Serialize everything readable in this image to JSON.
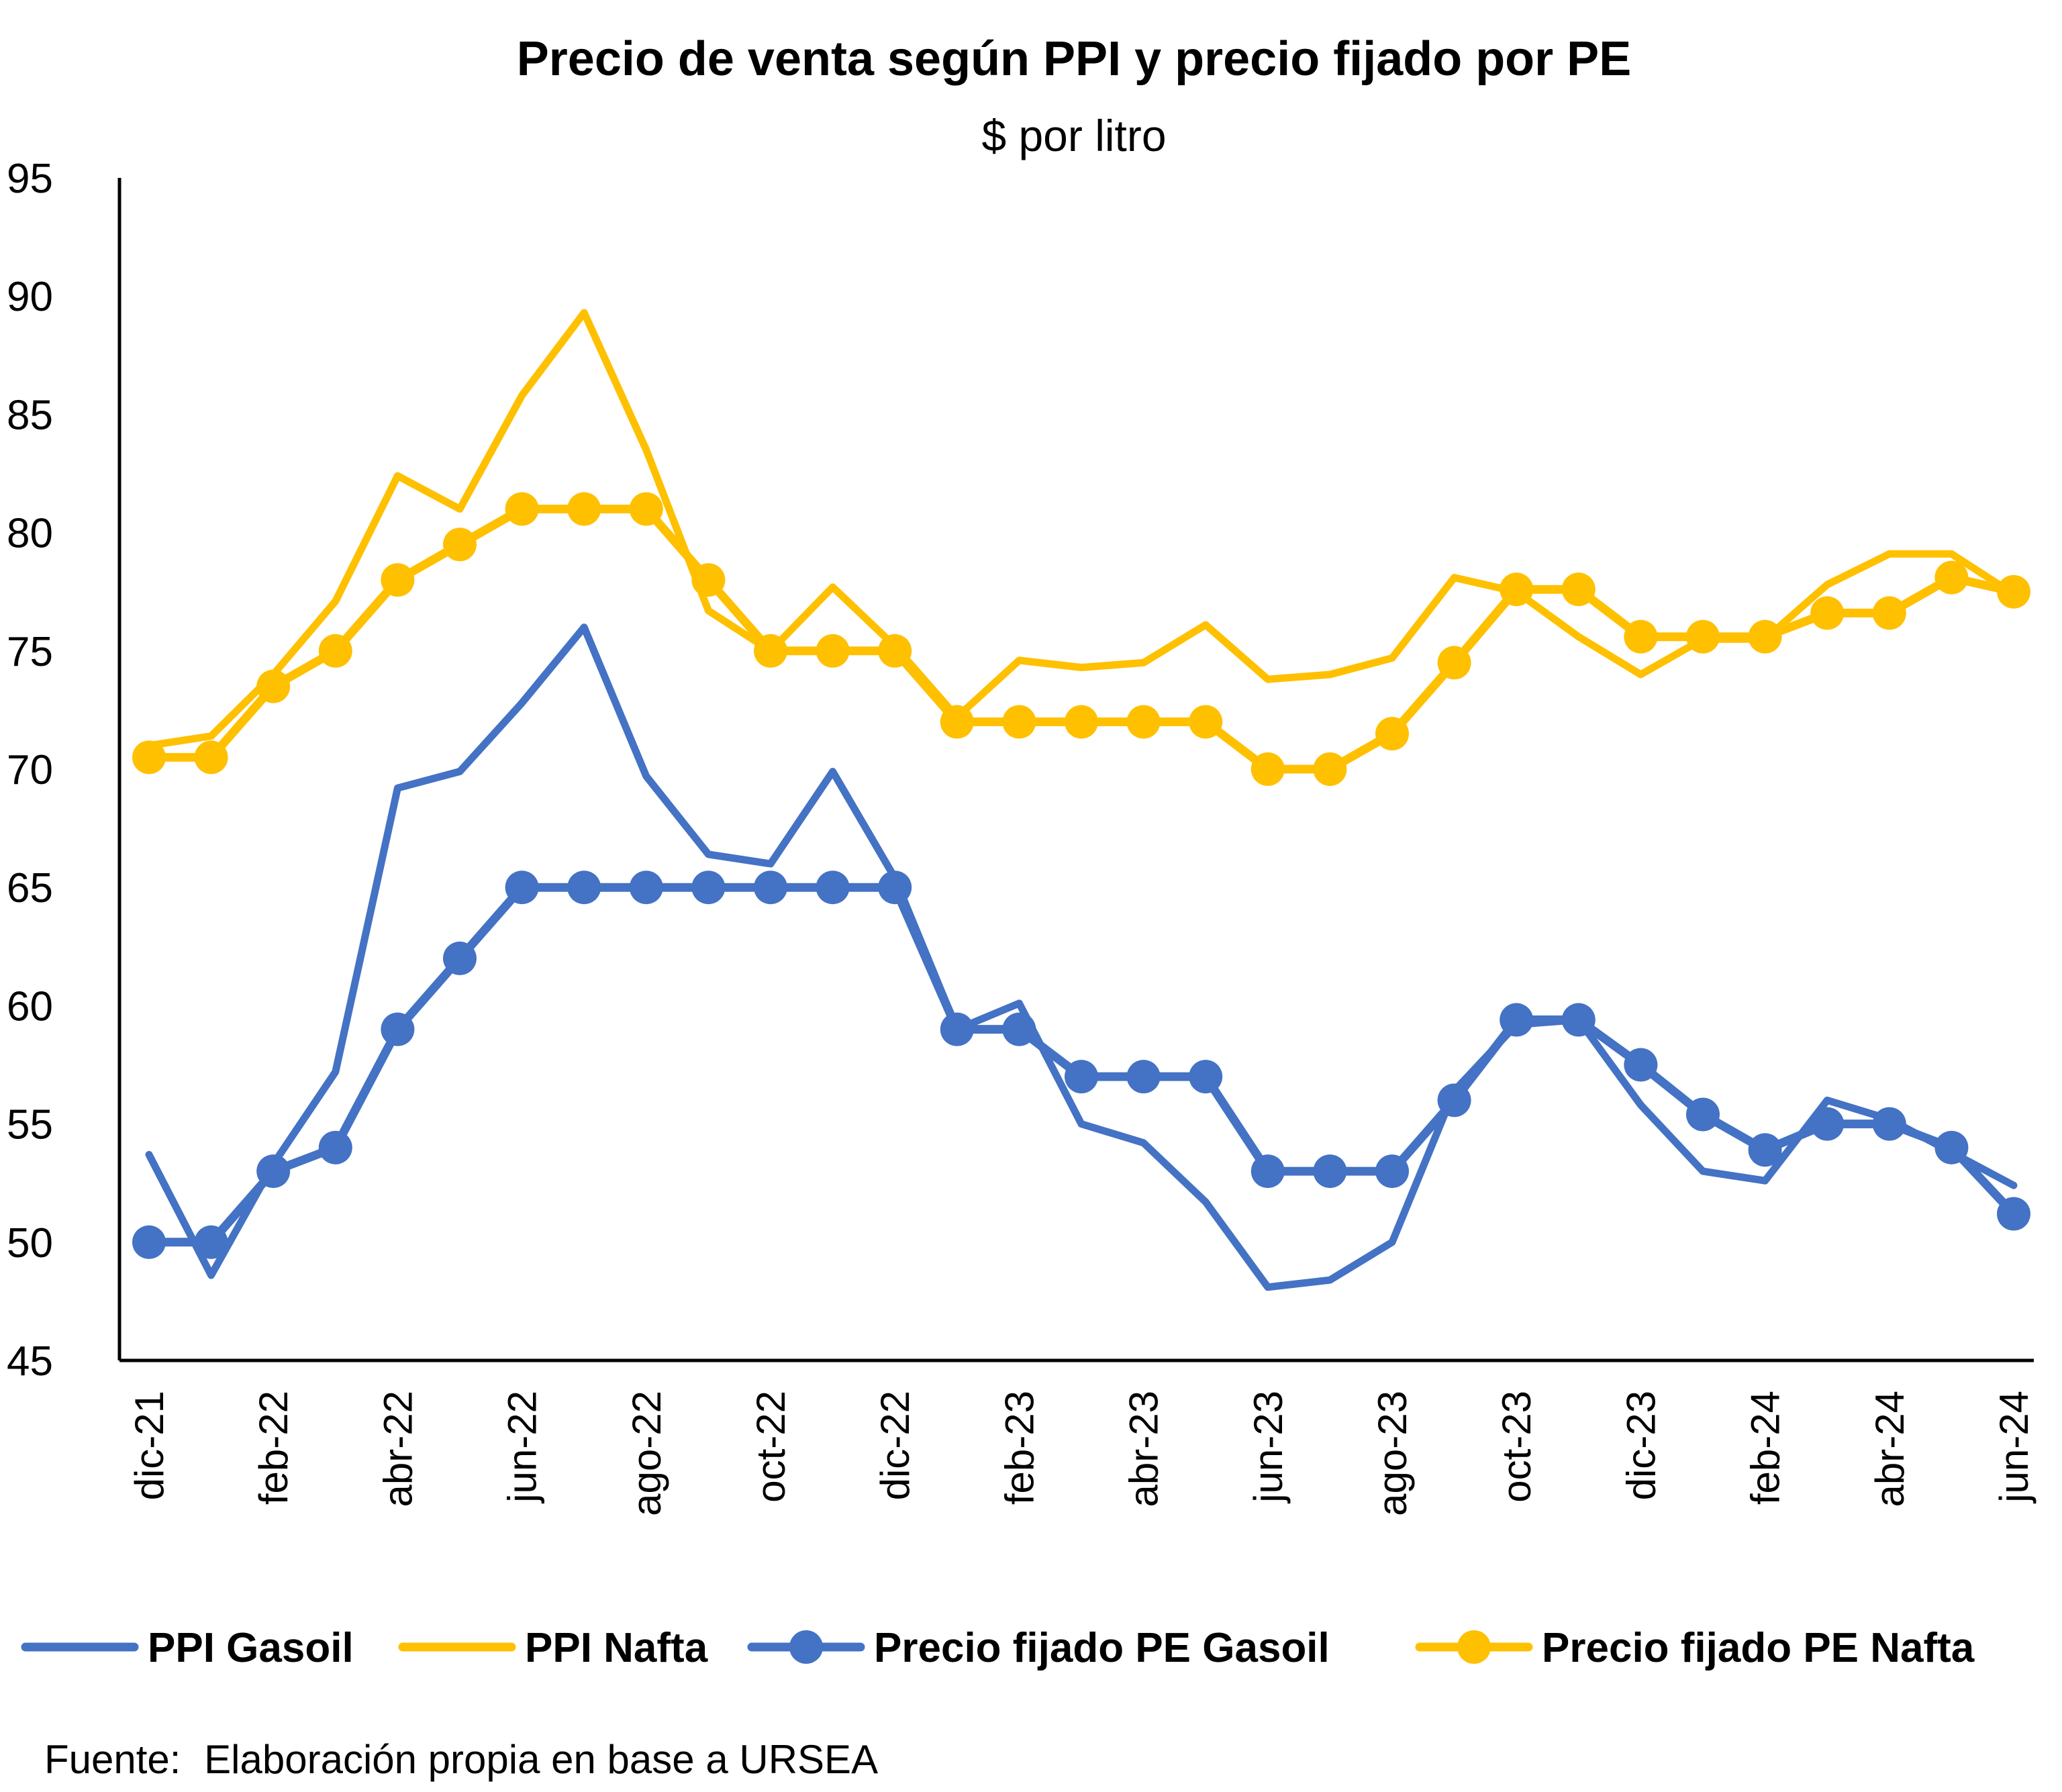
{
  "chart_data": {
    "type": "line",
    "title": "Precio de venta según PPI y precio fijado por PE",
    "subtitle": "$ por litro",
    "ylim": [
      45,
      95
    ],
    "yticks": [
      45,
      50,
      55,
      60,
      65,
      70,
      75,
      80,
      85,
      90,
      95
    ],
    "x": [
      "dic-21",
      "ene-22",
      "feb-22",
      "mar-22",
      "abr-22",
      "may-22",
      "jun-22",
      "jul-22",
      "ago-22",
      "sep-22",
      "oct-22",
      "nov-22",
      "dic-22",
      "ene-23",
      "feb-23",
      "mar-23",
      "abr-23",
      "may-23",
      "jun-23",
      "jul-23",
      "ago-23",
      "sep-23",
      "oct-23",
      "nov-23",
      "dic-23",
      "ene-24",
      "feb-24",
      "mar-24",
      "abr-24",
      "may-24",
      "jun-24"
    ],
    "xtick_labels": [
      "dic-21",
      "feb-22",
      "abr-22",
      "jun-22",
      "ago-22",
      "oct-22",
      "dic-22",
      "feb-23",
      "abr-23",
      "jun-23",
      "ago-23",
      "oct-23",
      "dic-23",
      "feb-24",
      "abr-24",
      "jun-24"
    ],
    "grid": false,
    "legend_position": "bottom",
    "series": [
      {
        "name": "PPI Gasoil",
        "color": "#4472C4",
        "markers": false,
        "values": [
          53.7,
          48.6,
          53.3,
          57.2,
          69.2,
          69.9,
          72.8,
          76.0,
          69.7,
          66.4,
          66.0,
          69.9,
          65.4,
          59.0,
          60.1,
          55.0,
          54.2,
          51.7,
          48.1,
          48.4,
          50.0,
          56.4,
          59.2,
          59.4,
          55.8,
          53.0,
          52.6,
          56.0,
          55.2,
          53.8,
          52.4
        ]
      },
      {
        "name": "PPI Nafta",
        "color": "#FFC000",
        "markers": false,
        "values": [
          71.0,
          71.4,
          74.0,
          77.1,
          82.4,
          81.0,
          85.8,
          89.3,
          83.5,
          76.7,
          75.0,
          77.7,
          75.2,
          72.2,
          74.6,
          74.3,
          74.5,
          76.1,
          73.8,
          74.0,
          74.7,
          78.1,
          77.5,
          75.6,
          74.0,
          75.5,
          75.5,
          77.8,
          79.1,
          79.1,
          77.4
        ]
      },
      {
        "name": "Precio fijado PE Gasoil",
        "color": "#4472C4",
        "markers": true,
        "values": [
          50.0,
          50.0,
          53.0,
          54.0,
          59.0,
          62.0,
          65.0,
          65.0,
          65.0,
          65.0,
          65.0,
          65.0,
          65.0,
          59.0,
          59.0,
          57.0,
          57.0,
          57.0,
          53.0,
          53.0,
          53.0,
          56.0,
          59.4,
          59.4,
          57.5,
          55.4,
          53.9,
          55.0,
          55.0,
          54.0,
          51.2
        ]
      },
      {
        "name": "Precio fijado PE Nafta",
        "color": "#FFC000",
        "markers": true,
        "values": [
          70.5,
          70.5,
          73.5,
          75.0,
          78.0,
          79.5,
          81.0,
          81.0,
          81.0,
          78.0,
          75.0,
          75.0,
          75.0,
          72.0,
          72.0,
          72.0,
          72.0,
          72.0,
          70.0,
          70.0,
          71.5,
          74.5,
          77.6,
          77.6,
          75.6,
          75.6,
          75.6,
          76.6,
          76.6,
          78.1,
          77.5
        ]
      }
    ]
  },
  "source": {
    "label": "Fuente:",
    "text": "Elaboración propia en base a URSEA"
  }
}
